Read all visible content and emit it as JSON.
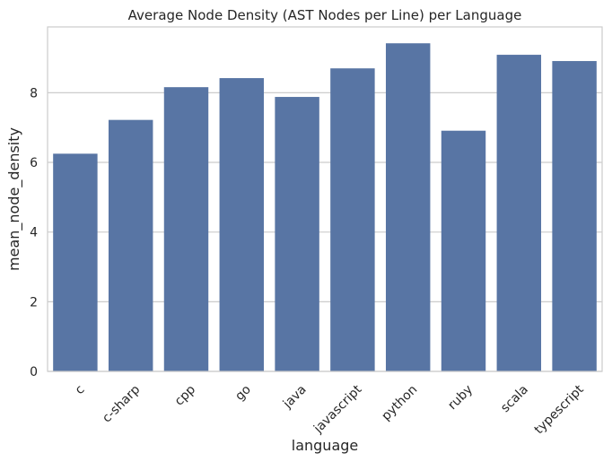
{
  "chart_data": {
    "type": "bar",
    "title": "Average Node Density (AST Nodes per Line) per Language",
    "xlabel": "language",
    "ylabel": "mean_node_density",
    "categories": [
      "c",
      "c-sharp",
      "cpp",
      "go",
      "java",
      "javascript",
      "python",
      "ruby",
      "scala",
      "typescript"
    ],
    "values": [
      6.25,
      7.22,
      8.16,
      8.42,
      7.88,
      8.7,
      9.42,
      6.91,
      9.09,
      8.91
    ],
    "ylim": [
      0,
      9.89
    ],
    "yticks": [
      0,
      2,
      4,
      6,
      8
    ],
    "grid": true,
    "bar_color": "#5875a4",
    "grid_color": "#cccccc",
    "spine_color": "#cccccc",
    "xtick_rotation": 45
  }
}
